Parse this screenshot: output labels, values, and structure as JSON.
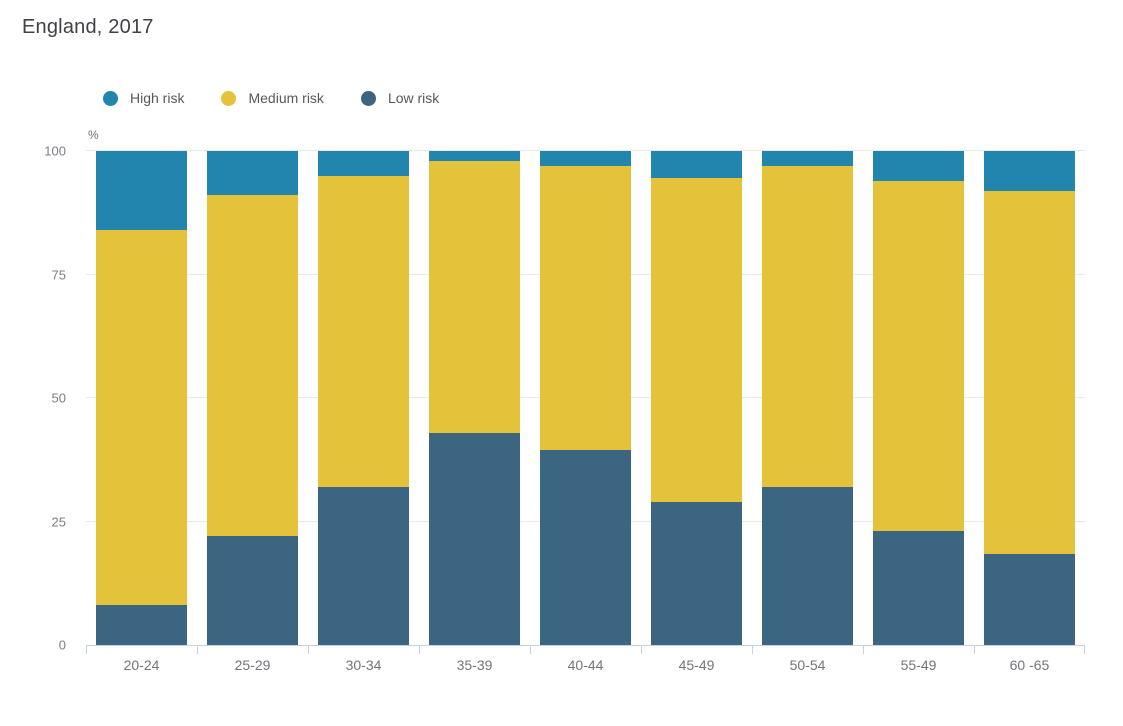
{
  "title": "England, 2017",
  "colors": {
    "high_risk": "#2185ad",
    "medium_risk": "#e4c33b",
    "low_risk": "#3c6582",
    "axis_line": "#c7d0e2",
    "gridline": "#e9e9e9",
    "title_text": "#3f4147",
    "axis_label_text": "#7c7c84",
    "category_label_text": "#74747c",
    "legend_text": "#575760",
    "background": "#ffffff"
  },
  "chart_data": {
    "type": "bar",
    "stacked": true,
    "title": "England, 2017",
    "xlabel": "",
    "ylabel": "%",
    "ylim": [
      0,
      100
    ],
    "yticks": [
      0,
      25,
      50,
      75,
      100
    ],
    "grid": true,
    "legend_position": "top",
    "categories": [
      "20-24",
      "25-29",
      "30-34",
      "35-39",
      "40-44",
      "45-49",
      "50-54",
      "55-49",
      "60 -65"
    ],
    "series": [
      {
        "name": "High risk",
        "color": "#2185ad",
        "values": [
          16,
          9,
          5,
          2,
          3,
          5.5,
          3,
          6,
          8
        ]
      },
      {
        "name": "Medium risk",
        "color": "#e4c33b",
        "values": [
          76,
          69,
          63,
          55,
          57.5,
          65.5,
          65,
          71,
          73.5
        ]
      },
      {
        "name": "Low risk",
        "color": "#3c6582",
        "values": [
          8,
          22,
          32,
          43,
          39.5,
          29,
          32,
          23,
          18.5
        ]
      }
    ]
  }
}
